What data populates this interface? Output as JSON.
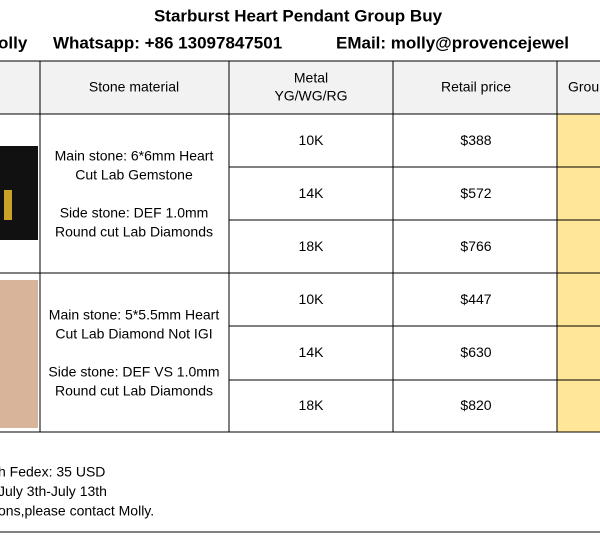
{
  "header": {
    "title": "Starburst Heart Pendant Group Buy",
    "contact": [
      "olly",
      "Whatsapp: +86 13097847501",
      "EMail: molly@provencejewel"
    ]
  },
  "table": {
    "columns": {
      "stone": "Stone material",
      "metal": [
        "Metal",
        "YG/WG/RG"
      ],
      "price": "Retail price",
      "group": "Grou"
    },
    "groups": [
      {
        "stone": [
          "Main stone: 6*6mm Heart",
          "Cut Lab Gemstone",
          "Side stone: DEF 1.0mm",
          "Round cut Lab Diamonds"
        ],
        "rows": [
          [
            "10K",
            "$388"
          ],
          [
            "14K",
            "$572"
          ],
          [
            "18K",
            "$766"
          ]
        ]
      },
      {
        "stone": [
          "Main stone: 5*5.5mm Heart",
          "Cut Lab Diamond Not IGI",
          "Side stone: DEF VS 1.0mm",
          "Round cut Lab Diamonds"
        ],
        "rows": [
          [
            "10K",
            "$447"
          ],
          [
            "14K",
            "$630"
          ],
          [
            "18K",
            "$820"
          ]
        ]
      }
    ]
  },
  "notes": [
    "h Fedex: 35 USD",
    "July 3th-July 13th",
    "ons,please contact Molly."
  ]
}
